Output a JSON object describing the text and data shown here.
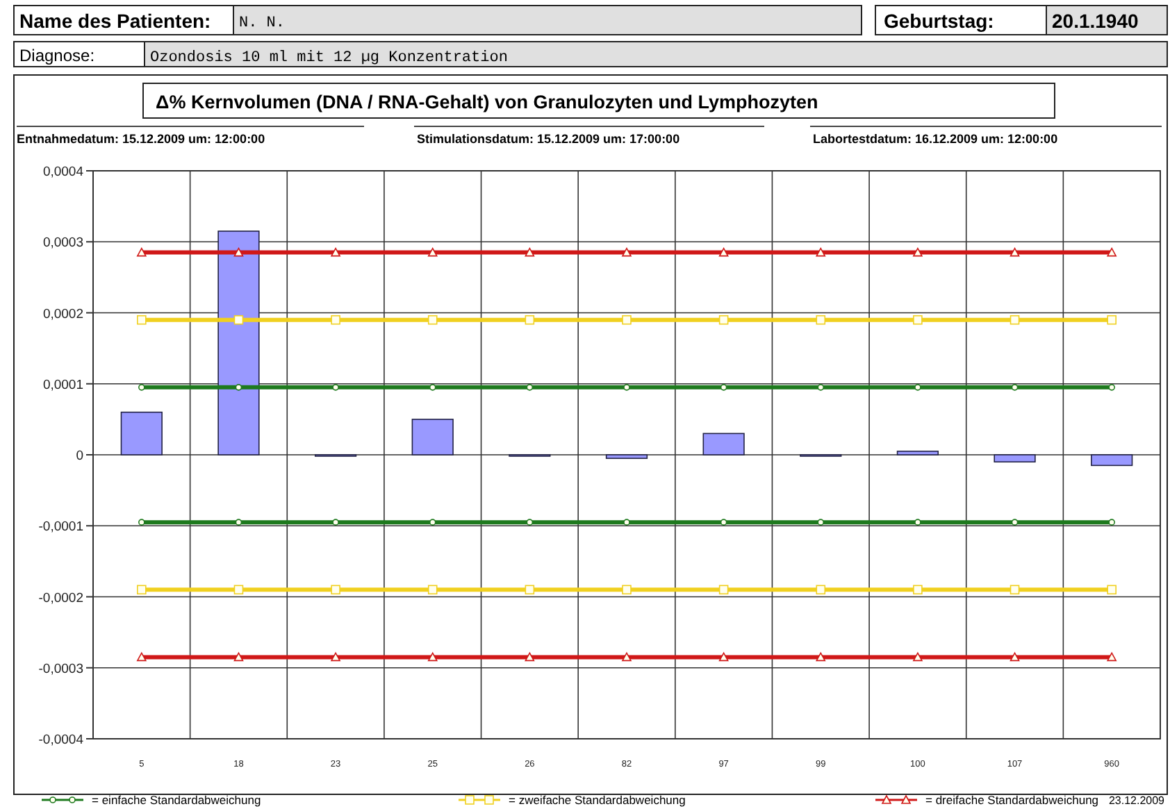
{
  "chart_data": {
    "type": "bar",
    "title": "Δ% Kernvolumen (DNA / RNA-Gehalt) von Granulozyten und Lymphozyten",
    "categories": [
      "5",
      "18",
      "23",
      "25",
      "26",
      "82",
      "97",
      "99",
      "100",
      "107",
      "960"
    ],
    "series": [
      {
        "color": "#9999ff",
        "values": [
          6e-05,
          0.000315,
          0,
          5e-05,
          0,
          -5e-06,
          3e-05,
          0,
          5e-06,
          -1e-05,
          -1.5e-05
        ]
      },
      {
        "type": "line",
        "name": "= einfache Standardabweichung",
        "color": "#1e7a1e",
        "marker": "circle",
        "values": [
          9.5e-05,
          9.5e-05,
          9.5e-05,
          9.5e-05,
          9.5e-05,
          9.5e-05,
          9.5e-05,
          9.5e-05,
          9.5e-05,
          9.5e-05,
          9.5e-05
        ]
      },
      {
        "type": "line",
        "name": "= zweifache Standardabweichung",
        "color": "#f0d020",
        "marker": "square",
        "values": [
          0.00019,
          0.00019,
          0.00019,
          0.00019,
          0.00019,
          0.00019,
          0.00019,
          0.00019,
          0.00019,
          0.00019,
          0.00019
        ]
      },
      {
        "type": "line",
        "name": "= dreifache Standardabweichung",
        "color": "#d01818",
        "marker": "triangle",
        "values": [
          0.000285,
          0.000285,
          0.000285,
          0.000285,
          0.000285,
          0.000285,
          0.000285,
          0.000285,
          0.000285,
          0.000285,
          0.000285
        ]
      },
      {
        "type": "line",
        "color": "#1e7a1e",
        "marker": "circle",
        "values": [
          -9.5e-05,
          -9.5e-05,
          -9.5e-05,
          -9.5e-05,
          -9.5e-05,
          -9.5e-05,
          -9.5e-05,
          -9.5e-05,
          -9.5e-05,
          -9.5e-05,
          -9.5e-05
        ]
      },
      {
        "type": "line",
        "color": "#f0d020",
        "marker": "square",
        "values": [
          -0.00019,
          -0.00019,
          -0.00019,
          -0.00019,
          -0.00019,
          -0.00019,
          -0.00019,
          -0.00019,
          -0.00019,
          -0.00019,
          -0.00019
        ]
      },
      {
        "type": "line",
        "color": "#d01818",
        "marker": "triangle",
        "values": [
          -0.000285,
          -0.000285,
          -0.000285,
          -0.000285,
          -0.000285,
          -0.000285,
          -0.000285,
          -0.000285,
          -0.000285,
          -0.000285,
          -0.000285
        ]
      }
    ],
    "ylim": [
      -0.0004,
      0.0004
    ],
    "yticks": [
      {
        "value": -0.0004,
        "label": "-0,0004"
      },
      {
        "value": -0.0003,
        "label": "-0,0003"
      },
      {
        "value": -0.0002,
        "label": "-0,0002"
      },
      {
        "value": -0.0001,
        "label": "-0,0001"
      },
      0,
      {
        "value": 0.0001,
        "label": "0,0001"
      },
      {
        "value": 0.0002,
        "label": "0,0002"
      },
      {
        "value": 0.0003,
        "label": "0,0003"
      },
      {
        "value": 0.0004,
        "label": "0,0004"
      }
    ],
    "grid": true,
    "legend": "bottom",
    "annotations": [
      "Name des Patienten:",
      "N. N.",
      "Geburtstag:",
      "20.1.1940",
      "Diagnose:",
      "Ozondosis 10 ml mit 12 µg Konzentration",
      "Entnahmedatum: 15.12.2009 um: 12:00:00",
      "Stimulationsdatum: 15.12.2009 um: 17:00:00",
      "Labortestdatum: 16.12.2009 um: 12:00:00",
      "23.12.2009"
    ]
  }
}
